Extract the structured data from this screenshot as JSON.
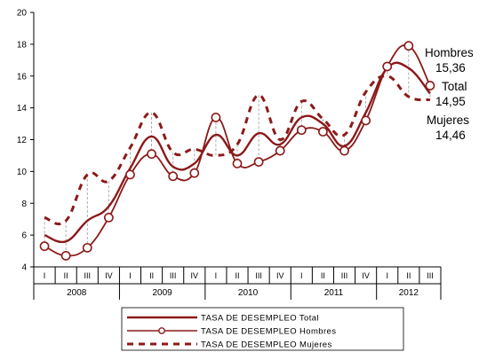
{
  "chart_data": {
    "type": "line",
    "ylim": [
      4,
      20
    ],
    "yticks": [
      4,
      6,
      8,
      10,
      12,
      14,
      16,
      18,
      20
    ],
    "categories": [
      "I",
      "II",
      "III",
      "IV",
      "I",
      "II",
      "III",
      "IV",
      "I",
      "II",
      "III",
      "IV",
      "I",
      "II",
      "III",
      "IV",
      "I",
      "II",
      "III"
    ],
    "years": [
      {
        "label": "2008",
        "count": 4
      },
      {
        "label": "2009",
        "count": 4
      },
      {
        "label": "2010",
        "count": 4
      },
      {
        "label": "2011",
        "count": 4
      },
      {
        "label": "2012",
        "count": 3
      }
    ],
    "series": [
      {
        "name": "TASA DE DESEMPLEO Total",
        "color": "#8B1A1A",
        "style": "solid",
        "values": [
          6.0,
          5.6,
          6.9,
          7.8,
          10.2,
          12.2,
          10.3,
          10.5,
          12.3,
          11.0,
          12.4,
          11.7,
          13.4,
          13.0,
          11.6,
          13.7,
          16.5,
          16.5,
          14.9
        ]
      },
      {
        "name": "TASA DE DESEMPLEO Hombres",
        "color": "#8B1A1A",
        "style": "markers",
        "values": [
          5.3,
          4.7,
          5.2,
          7.1,
          9.8,
          11.1,
          9.7,
          9.9,
          13.4,
          10.5,
          10.6,
          11.3,
          12.6,
          12.5,
          11.3,
          13.2,
          16.6,
          17.9,
          15.4
        ]
      },
      {
        "name": "TASA DE DESEMPLEO Mujeres",
        "color": "#8B1A1A",
        "style": "dashed",
        "values": [
          7.1,
          6.9,
          9.8,
          9.4,
          11.5,
          13.7,
          11.2,
          11.4,
          11.0,
          11.7,
          14.8,
          12.0,
          14.4,
          13.3,
          12.3,
          15.0,
          16.0,
          14.7,
          14.5
        ]
      }
    ],
    "annotations": [
      {
        "text": "Hombres"
      },
      {
        "text": "15,36"
      },
      {
        "text": "Total"
      },
      {
        "text": "14,95"
      },
      {
        "text": "Mujeres"
      },
      {
        "text": "14,46"
      }
    ],
    "legend_position": "bottom"
  }
}
